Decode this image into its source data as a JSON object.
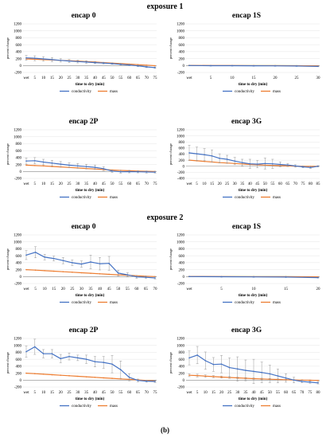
{
  "sections": [
    {
      "title": "exposure 1"
    },
    {
      "title": "exposure 2"
    }
  ],
  "caption": "(b)",
  "series_colors": {
    "conductivity": "#4472C4",
    "mass": "#ED7D31"
  },
  "chart_data": [
    {
      "type": "line",
      "title": "encap 0",
      "xlabel": "time to dry (min)",
      "ylabel": "percent change",
      "categories": [
        "wet",
        "5",
        "10",
        "15",
        "20",
        "25",
        "30",
        "35",
        "40",
        "45",
        "50",
        "55",
        "60",
        "65",
        "70",
        "75"
      ],
      "ylim": [
        -200,
        1200
      ],
      "yticks": [
        -200,
        0,
        200,
        400,
        600,
        800,
        1000,
        1200
      ],
      "series": [
        {
          "name": "conductivity",
          "values": [
            220,
            210,
            190,
            170,
            150,
            130,
            115,
            100,
            85,
            70,
            55,
            35,
            15,
            -10,
            -40,
            -60
          ],
          "errors": [
            70,
            70,
            65,
            60,
            50,
            45,
            40,
            35,
            30,
            25,
            20,
            20,
            20,
            20,
            20,
            20
          ]
        },
        {
          "name": "mass",
          "values": [
            190,
            180,
            170,
            160,
            150,
            140,
            128,
            115,
            100,
            85,
            70,
            55,
            40,
            25,
            10,
            -5
          ],
          "errors": [
            0,
            0,
            0,
            0,
            0,
            0,
            0,
            0,
            0,
            0,
            0,
            0,
            0,
            0,
            0,
            0
          ]
        }
      ],
      "legend": "bottom"
    },
    {
      "type": "line",
      "title": "encap 1S",
      "xlabel": "time to dry (min)",
      "ylabel": "percent change",
      "categories": [
        "wet",
        "5",
        "10",
        "15",
        "20",
        "25",
        "30"
      ],
      "ylim": [
        -200,
        1200
      ],
      "yticks": [
        -200,
        0,
        200,
        400,
        600,
        800,
        1000,
        1200
      ],
      "series": [
        {
          "name": "conductivity",
          "values": [
            0,
            -5,
            -5,
            -8,
            -10,
            -15,
            -25
          ],
          "errors": [
            10,
            10,
            10,
            10,
            10,
            10,
            10
          ]
        },
        {
          "name": "mass",
          "values": [
            5,
            3,
            2,
            0,
            -2,
            -5,
            -10
          ],
          "errors": [
            0,
            0,
            0,
            0,
            0,
            0,
            0
          ]
        }
      ],
      "legend": "bottom"
    },
    {
      "type": "line",
      "title": "encap 2P",
      "xlabel": "time to dry (min)",
      "ylabel": "percent change",
      "categories": [
        "wet",
        "5",
        "10",
        "15",
        "20",
        "25",
        "30",
        "35",
        "40",
        "45",
        "50",
        "55",
        "60",
        "65",
        "70",
        "75"
      ],
      "ylim": [
        -200,
        1200
      ],
      "yticks": [
        -200,
        0,
        200,
        400,
        600,
        800,
        1000,
        1200
      ],
      "series": [
        {
          "name": "conductivity",
          "values": [
            300,
            310,
            270,
            240,
            210,
            180,
            160,
            140,
            120,
            80,
            10,
            -10,
            -5,
            -10,
            -15,
            -20
          ],
          "errors": [
            90,
            90,
            80,
            80,
            75,
            70,
            70,
            65,
            60,
            55,
            40,
            40,
            35,
            30,
            30,
            25
          ]
        },
        {
          "name": "mass",
          "values": [
            180,
            170,
            160,
            145,
            130,
            115,
            100,
            85,
            70,
            55,
            40,
            30,
            20,
            10,
            5,
            0
          ],
          "errors": [
            0,
            0,
            0,
            0,
            0,
            0,
            0,
            0,
            0,
            0,
            0,
            0,
            0,
            0,
            0,
            0
          ]
        }
      ],
      "legend": "bottom"
    },
    {
      "type": "line",
      "title": "encap 3G",
      "xlabel": "time to dry (min)",
      "ylabel": "percent change",
      "categories": [
        "wet",
        "5",
        "10",
        "15",
        "20",
        "25",
        "30",
        "35",
        "40",
        "45",
        "50",
        "55",
        "60",
        "65",
        "70",
        "75",
        "80",
        "85"
      ],
      "ylim": [
        -400,
        1200
      ],
      "yticks": [
        -400,
        -200,
        0,
        200,
        400,
        600,
        800,
        1000,
        1200
      ],
      "series": [
        {
          "name": "conductivity",
          "values": [
            440,
            410,
            380,
            340,
            260,
            230,
            170,
            120,
            80,
            70,
            90,
            80,
            60,
            40,
            10,
            -20,
            -40,
            0
          ],
          "errors": [
            250,
            220,
            200,
            200,
            150,
            130,
            120,
            110,
            150,
            120,
            180,
            150,
            80,
            50,
            40,
            30,
            30,
            20
          ]
        },
        {
          "name": "mass",
          "values": [
            200,
            180,
            160,
            140,
            120,
            105,
            90,
            75,
            60,
            48,
            38,
            28,
            20,
            12,
            5,
            0,
            -3,
            -5
          ],
          "errors": [
            0,
            0,
            0,
            0,
            0,
            0,
            0,
            0,
            0,
            0,
            0,
            0,
            0,
            0,
            0,
            0,
            0,
            0
          ]
        }
      ],
      "legend": "bottom"
    },
    {
      "type": "line",
      "title": "encap 0",
      "xlabel": "time to dry (min)",
      "ylabel": "percent change",
      "categories": [
        "wet",
        "5",
        "10",
        "15",
        "20",
        "25",
        "30",
        "35",
        "40",
        "45",
        "50",
        "55",
        "60",
        "65",
        "70"
      ],
      "ylim": [
        -200,
        1200
      ],
      "yticks": [
        -200,
        0,
        200,
        400,
        600,
        800,
        1000,
        1200
      ],
      "series": [
        {
          "name": "conductivity",
          "values": [
            620,
            700,
            560,
            520,
            460,
            400,
            360,
            420,
            370,
            380,
            100,
            50,
            -10,
            -20,
            -40
          ],
          "errors": [
            130,
            160,
            80,
            70,
            90,
            80,
            90,
            200,
            180,
            200,
            80,
            60,
            40,
            30,
            30
          ]
        },
        {
          "name": "mass",
          "values": [
            200,
            185,
            170,
            155,
            140,
            125,
            110,
            95,
            80,
            65,
            50,
            38,
            25,
            12,
            0
          ],
          "errors": [
            0,
            0,
            0,
            0,
            0,
            0,
            0,
            0,
            0,
            0,
            0,
            0,
            0,
            0,
            0
          ]
        }
      ],
      "legend": "bottom"
    },
    {
      "type": "line",
      "title": "encap 1S",
      "xlabel": "time to dry (min)",
      "ylabel": "percent change",
      "categories": [
        "wet",
        "5",
        "10",
        "15",
        "20"
      ],
      "ylim": [
        -200,
        1200
      ],
      "yticks": [
        -200,
        0,
        200,
        400,
        600,
        800,
        1000,
        1200
      ],
      "series": [
        {
          "name": "conductivity",
          "values": [
            0,
            -5,
            -10,
            -15,
            -30
          ],
          "errors": [
            10,
            10,
            10,
            10,
            10
          ]
        },
        {
          "name": "mass",
          "values": [
            5,
            2,
            0,
            -3,
            -8
          ],
          "errors": [
            0,
            0,
            0,
            0,
            0
          ]
        }
      ],
      "legend": "bottom"
    },
    {
      "type": "line",
      "title": "encap 2P",
      "xlabel": "time to dry (min)",
      "ylabel": "percent change",
      "categories": [
        "wet",
        "5",
        "10",
        "15",
        "20",
        "25",
        "30",
        "35",
        "40",
        "45",
        "50",
        "55",
        "60",
        "65",
        "70",
        "75"
      ],
      "ylim": [
        -200,
        1200
      ],
      "yticks": [
        -200,
        0,
        200,
        400,
        600,
        800,
        1000,
        1200
      ],
      "series": [
        {
          "name": "conductivity",
          "values": [
            820,
            960,
            760,
            760,
            620,
            680,
            640,
            600,
            530,
            510,
            460,
            300,
            80,
            -10,
            -30,
            -40
          ],
          "errors": [
            160,
            220,
            120,
            120,
            120,
            100,
            80,
            120,
            150,
            170,
            250,
            250,
            100,
            40,
            30,
            30
          ]
        },
        {
          "name": "mass",
          "values": [
            200,
            185,
            170,
            155,
            140,
            125,
            110,
            95,
            80,
            65,
            50,
            35,
            20,
            5,
            -10,
            -20
          ],
          "errors": [
            0,
            0,
            0,
            0,
            0,
            0,
            0,
            0,
            0,
            0,
            0,
            0,
            0,
            0,
            0,
            0
          ]
        }
      ],
      "legend": "bottom"
    },
    {
      "type": "line",
      "title": "encap 3G",
      "xlabel": "time to dry (min)",
      "ylabel": "percent change",
      "categories": [
        "wet",
        "5",
        "10",
        "15",
        "20",
        "25",
        "30",
        "35",
        "40",
        "45",
        "50",
        "55",
        "60",
        "65",
        "70",
        "75",
        "80"
      ],
      "ylim": [
        -200,
        1200
      ],
      "yticks": [
        -200,
        0,
        200,
        400,
        600,
        800,
        1000,
        1200
      ],
      "series": [
        {
          "name": "conductivity",
          "values": [
            640,
            720,
            560,
            450,
            460,
            360,
            320,
            280,
            250,
            220,
            180,
            120,
            60,
            0,
            -40,
            -60,
            -80
          ],
          "errors": [
            200,
            250,
            250,
            200,
            250,
            280,
            350,
            300,
            350,
            300,
            250,
            200,
            120,
            80,
            40,
            30,
            30
          ]
        },
        {
          "name": "mass",
          "values": [
            140,
            130,
            115,
            100,
            88,
            76,
            64,
            52,
            42,
            34,
            26,
            18,
            10,
            4,
            0,
            -5,
            -10
          ],
          "errors": [
            40,
            40,
            35,
            30,
            30,
            25,
            25,
            20,
            20,
            20,
            20,
            15,
            15,
            10,
            10,
            10,
            10
          ]
        }
      ],
      "legend": "bottom"
    }
  ]
}
